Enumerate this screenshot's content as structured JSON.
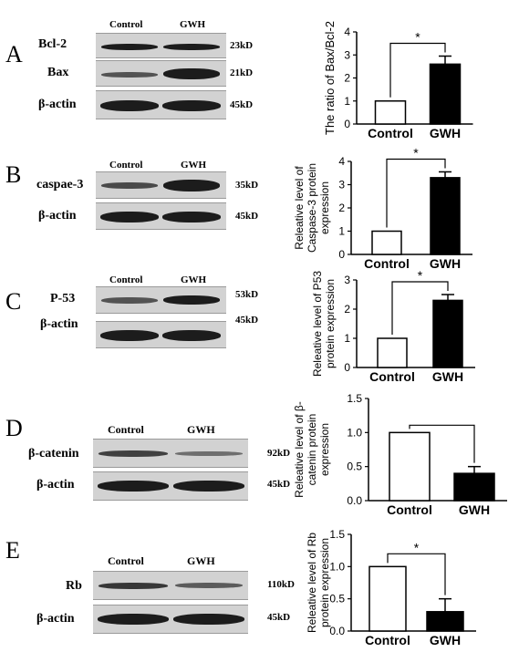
{
  "lanes": {
    "control": "Control",
    "gwh": "GWH"
  },
  "panels": [
    {
      "letter": "A",
      "rows": [
        {
          "label": "Bcl-2",
          "kd": "23kD"
        },
        {
          "label": "Bax",
          "kd": "21kD"
        },
        {
          "label": "β-actin",
          "kd": "45kD"
        }
      ]
    },
    {
      "letter": "B",
      "rows": [
        {
          "label": "caspae-3",
          "kd": "35kD"
        },
        {
          "label": "β-actin",
          "kd": "45kD"
        }
      ]
    },
    {
      "letter": "C",
      "rows": [
        {
          "label": "P-53",
          "kd": "53kD"
        },
        {
          "label": "β-actin",
          "kd": "45kD"
        }
      ]
    },
    {
      "letter": "D",
      "rows": [
        {
          "label": "β-catenin",
          "kd": "92kD"
        },
        {
          "label": "β-actin",
          "kd": "45kD"
        }
      ]
    },
    {
      "letter": "E",
      "rows": [
        {
          "label": "Rb",
          "kd": "110kD"
        },
        {
          "label": "β-actin",
          "kd": "45kD"
        }
      ]
    }
  ],
  "chart_data": [
    {
      "type": "bar",
      "categories": [
        "Control",
        "GWH"
      ],
      "values": [
        1.0,
        2.6
      ],
      "errors": [
        0,
        0.35
      ],
      "ylabel": "The ratio of Bax/Bcl-2",
      "ylim": [
        0,
        4
      ],
      "yticks": [
        "0",
        "1",
        "2",
        "3",
        "4"
      ],
      "significance": "*",
      "fills": [
        "#ffffff",
        "#000000"
      ]
    },
    {
      "type": "bar",
      "categories": [
        "Control",
        "GWH"
      ],
      "values": [
        1.0,
        3.3
      ],
      "errors": [
        0,
        0.25
      ],
      "ylabel": "Releative level of Caspase-3 protein expression",
      "ylim": [
        0,
        4
      ],
      "yticks": [
        "0",
        "1",
        "2",
        "3",
        "4"
      ],
      "significance": "*",
      "fills": [
        "#ffffff",
        "#000000"
      ]
    },
    {
      "type": "bar",
      "categories": [
        "Control",
        "GWH"
      ],
      "values": [
        1.0,
        2.3
      ],
      "errors": [
        0,
        0.2
      ],
      "ylabel": "Releative level of P53 protein expression",
      "ylim": [
        0,
        3
      ],
      "yticks": [
        "0",
        "1",
        "2",
        "3"
      ],
      "significance": "*",
      "fills": [
        "#ffffff",
        "#000000"
      ]
    },
    {
      "type": "bar",
      "categories": [
        "Control",
        "GWH"
      ],
      "values": [
        1.0,
        0.4
      ],
      "errors": [
        0,
        0.1
      ],
      "ylabel": "Releative level of β-catenin protein expression",
      "ylim": [
        0,
        1.5
      ],
      "yticks": [
        "0.0",
        "0.5",
        "1.0",
        "1.5"
      ],
      "significance": "",
      "fills": [
        "#ffffff",
        "#000000"
      ]
    },
    {
      "type": "bar",
      "categories": [
        "Control",
        "GWH"
      ],
      "values": [
        1.0,
        0.3
      ],
      "errors": [
        0,
        0.2
      ],
      "ylabel": "Releative level of Rb protein expression",
      "ylim": [
        0,
        1.5
      ],
      "yticks": [
        "0.0",
        "0.5",
        "1.0",
        "1.5"
      ],
      "significance": "*",
      "fills": [
        "#ffffff",
        "#000000"
      ]
    }
  ]
}
